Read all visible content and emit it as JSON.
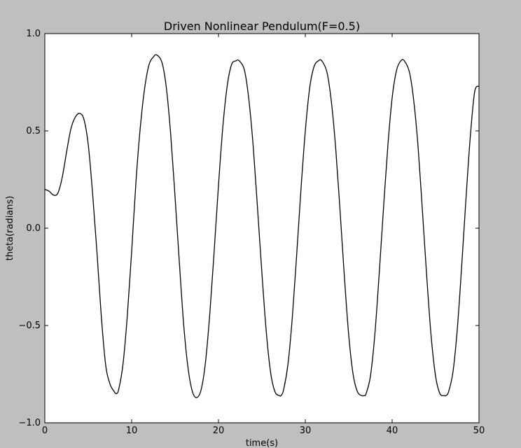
{
  "chart_data": {
    "type": "line",
    "title": "Driven Nonlinear Pendulum(F=0.5)",
    "xlabel": "time(s)",
    "ylabel": "theta(radians)",
    "xlim": [
      0,
      50
    ],
    "ylim": [
      -1.0,
      1.0
    ],
    "xticks": [
      0,
      10,
      20,
      30,
      40,
      50
    ],
    "xtick_labels": [
      "0",
      "10",
      "20",
      "30",
      "40",
      "50"
    ],
    "yticks": [
      -1.0,
      -0.5,
      0.0,
      0.5,
      1.0
    ],
    "ytick_labels": [
      "−1.0",
      "−0.5",
      "0.0",
      "0.5",
      "1.0"
    ],
    "grid": false,
    "colors": {
      "figure_background": "#bfbfbf",
      "plot_background": "#ffffff",
      "line": "#000000"
    },
    "series": [
      {
        "x": [
          0,
          0.5,
          1.0,
          1.5,
          2.0,
          2.5,
          3.0,
          3.5,
          4.0,
          4.5,
          5.0,
          5.5,
          6.0,
          6.5,
          7.0,
          7.5,
          8.0,
          8.2,
          8.5,
          9.0,
          9.5,
          10.0,
          10.5,
          11.0,
          11.5,
          12.0,
          12.5,
          12.9,
          13.5,
          14.0,
          14.5,
          15.0,
          15.5,
          16.0,
          16.5,
          17.0,
          17.5,
          18.0,
          18.5,
          19.0,
          19.5,
          20.0,
          20.5,
          21.0,
          21.5,
          22.0,
          22.4,
          23.0,
          23.5,
          24.0,
          24.5,
          25.0,
          25.5,
          26.0,
          26.5,
          27.0,
          27.2,
          27.5,
          28.0,
          28.5,
          29.0,
          29.5,
          30.0,
          30.5,
          31.0,
          31.5,
          31.9,
          32.5,
          33.0,
          33.5,
          34.0,
          34.5,
          35.0,
          35.5,
          36.0,
          36.5,
          36.8,
          37.0,
          37.5,
          38.0,
          38.5,
          39.0,
          39.5,
          40.0,
          40.5,
          41.0,
          41.4,
          42.0,
          42.5,
          43.0,
          43.5,
          44.0,
          44.5,
          45.0,
          45.5,
          46.0,
          46.2,
          46.5,
          47.0,
          47.5,
          48.0,
          48.5,
          49.0,
          49.5,
          50.0
        ],
        "y": [
          0.2,
          0.19,
          0.17,
          0.18,
          0.26,
          0.39,
          0.51,
          0.57,
          0.59,
          0.56,
          0.43,
          0.18,
          -0.12,
          -0.45,
          -0.7,
          -0.8,
          -0.84,
          -0.85,
          -0.83,
          -0.7,
          -0.45,
          -0.12,
          0.24,
          0.52,
          0.72,
          0.84,
          0.88,
          0.89,
          0.85,
          0.72,
          0.48,
          0.16,
          -0.18,
          -0.5,
          -0.72,
          -0.84,
          -0.87,
          -0.83,
          -0.69,
          -0.44,
          -0.12,
          0.22,
          0.52,
          0.73,
          0.84,
          0.86,
          0.86,
          0.81,
          0.66,
          0.42,
          0.1,
          -0.23,
          -0.53,
          -0.74,
          -0.84,
          -0.86,
          -0.86,
          -0.83,
          -0.7,
          -0.46,
          -0.14,
          0.2,
          0.5,
          0.72,
          0.83,
          0.86,
          0.86,
          0.8,
          0.65,
          0.41,
          0.09,
          -0.25,
          -0.55,
          -0.75,
          -0.84,
          -0.86,
          -0.86,
          -0.85,
          -0.76,
          -0.55,
          -0.24,
          0.1,
          0.42,
          0.67,
          0.81,
          0.86,
          0.86,
          0.8,
          0.65,
          0.41,
          0.08,
          -0.26,
          -0.56,
          -0.76,
          -0.85,
          -0.86,
          -0.86,
          -0.84,
          -0.74,
          -0.52,
          -0.2,
          0.15,
          0.47,
          0.7,
          0.73
        ]
      }
    ]
  }
}
